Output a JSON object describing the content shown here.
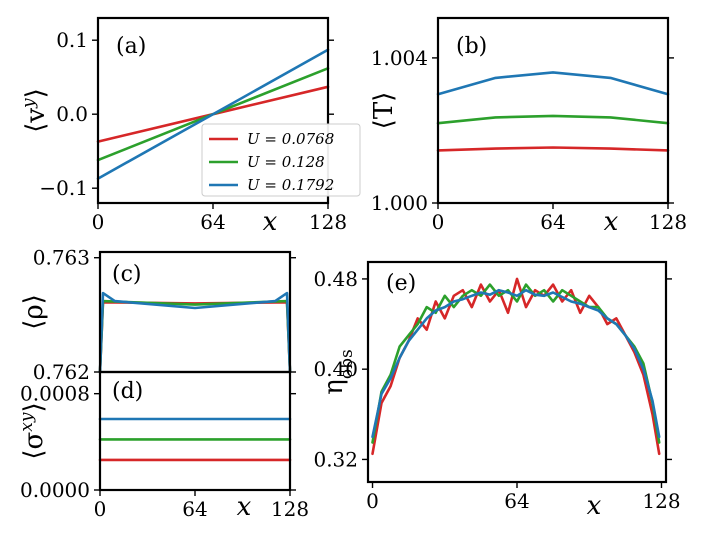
{
  "colors": {
    "red": "#d62728",
    "green": "#2ca02c",
    "blue": "#1f77b4"
  },
  "legend": [
    {
      "label": "U = 0.0768",
      "color": "#d62728"
    },
    {
      "label": "U = 0.128",
      "color": "#2ca02c"
    },
    {
      "label": "U = 0.1792",
      "color": "#1f77b4"
    }
  ],
  "chart_data": [
    {
      "id": "a",
      "panel_label": "(a)",
      "type": "line",
      "xlabel": "x",
      "ylabel": "⟨v^y⟩",
      "xlim": [
        0,
        128
      ],
      "ylim": [
        -0.12,
        0.13
      ],
      "xticks": [
        0,
        64,
        128
      ],
      "xtick_labels": [
        "0",
        "64",
        "128"
      ],
      "yticks": [
        -0.1,
        0.0,
        0.1
      ],
      "ytick_labels": [
        "−0.1",
        "0.0",
        "0.1"
      ],
      "series": [
        {
          "name": "U = 0.0768",
          "color": "#d62728",
          "x": [
            0,
            64,
            128
          ],
          "y": [
            -0.037,
            0.0,
            0.037
          ]
        },
        {
          "name": "U = 0.128",
          "color": "#2ca02c",
          "x": [
            0,
            64,
            128
          ],
          "y": [
            -0.062,
            0.0,
            0.062
          ]
        },
        {
          "name": "U = 0.1792",
          "color": "#1f77b4",
          "x": [
            0,
            64,
            128
          ],
          "y": [
            -0.087,
            0.0,
            0.087
          ]
        }
      ]
    },
    {
      "id": "b",
      "panel_label": "(b)",
      "type": "line",
      "xlabel": "x",
      "ylabel": "⟨T⟩",
      "xlim": [
        0,
        128
      ],
      "ylim": [
        1.0,
        1.0051
      ],
      "xticks": [
        0,
        64,
        128
      ],
      "xtick_labels": [
        "0",
        "64",
        "128"
      ],
      "yticks": [
        1.0,
        1.004
      ],
      "ytick_labels": [
        "1.000",
        "1.004"
      ],
      "series": [
        {
          "name": "U = 0.0768",
          "color": "#d62728",
          "x": [
            0,
            32,
            64,
            96,
            128
          ],
          "y": [
            1.00145,
            1.0015,
            1.00153,
            1.0015,
            1.00145
          ]
        },
        {
          "name": "U = 0.128",
          "color": "#2ca02c",
          "x": [
            0,
            32,
            64,
            96,
            128
          ],
          "y": [
            1.0022,
            1.00236,
            1.0024,
            1.00236,
            1.0022
          ]
        },
        {
          "name": "U = 0.1792",
          "color": "#1f77b4",
          "x": [
            0,
            32,
            64,
            96,
            128
          ],
          "y": [
            1.003,
            1.00345,
            1.0036,
            1.00345,
            1.003
          ]
        }
      ]
    },
    {
      "id": "c",
      "panel_label": "(c)",
      "type": "line",
      "xlabel": "",
      "ylabel": "⟨ρ⟩",
      "xlim": [
        0,
        128
      ],
      "ylim": [
        0.762,
        0.76305
      ],
      "xticks": [],
      "xtick_labels": [],
      "yticks": [
        0.762,
        0.763
      ],
      "ytick_labels": [
        "0.762",
        "0.763"
      ],
      "series": [
        {
          "name": "U = 0.0768",
          "color": "#d62728",
          "x": [
            0,
            2,
            64,
            126,
            128
          ],
          "y": [
            0.762,
            0.76261,
            0.7626,
            0.76261,
            0.762
          ]
        },
        {
          "name": "U = 0.128",
          "color": "#2ca02c",
          "x": [
            0,
            2,
            64,
            126,
            128
          ],
          "y": [
            0.762,
            0.76262,
            0.76259,
            0.76262,
            0.762
          ]
        },
        {
          "name": "U = 0.1792",
          "color": "#1f77b4",
          "x": [
            0,
            2,
            10,
            64,
            118,
            126,
            128
          ],
          "y": [
            0.762,
            0.76269,
            0.76262,
            0.76256,
            0.76262,
            0.76269,
            0.762
          ]
        }
      ]
    },
    {
      "id": "d",
      "panel_label": "(d)",
      "type": "line",
      "xlabel": "x",
      "ylabel": "⟨σ^xy⟩",
      "xlim": [
        0,
        128
      ],
      "ylim": [
        0.0,
        0.00098
      ],
      "xticks": [
        0,
        64,
        128
      ],
      "xtick_labels": [
        "0",
        "64",
        "128"
      ],
      "yticks": [
        0.0,
        0.0008
      ],
      "ytick_labels": [
        "0.0000",
        "0.0008"
      ],
      "series": [
        {
          "name": "U = 0.0768",
          "color": "#d62728",
          "x": [
            0,
            128
          ],
          "y": [
            0.00025,
            0.00025
          ]
        },
        {
          "name": "U = 0.128",
          "color": "#2ca02c",
          "x": [
            0,
            128
          ],
          "y": [
            0.00042,
            0.00042
          ]
        },
        {
          "name": "U = 0.1792",
          "color": "#1f77b4",
          "x": [
            0,
            128
          ],
          "y": [
            0.00059,
            0.00059
          ]
        }
      ]
    },
    {
      "id": "e",
      "panel_label": "(e)",
      "type": "line",
      "xlabel": "x",
      "ylabel": "η_obs",
      "xlim": [
        -2,
        130
      ],
      "ylim": [
        0.3,
        0.495
      ],
      "xticks": [
        0,
        64,
        128
      ],
      "xtick_labels": [
        "0",
        "64",
        "128"
      ],
      "yticks": [
        0.32,
        0.4,
        0.48
      ],
      "ytick_labels": [
        "0.32",
        "0.40",
        "0.48"
      ],
      "series": [
        {
          "name": "U = 0.0768",
          "color": "#d62728",
          "x": [
            0,
            4,
            8,
            12,
            16,
            20,
            24,
            28,
            32,
            36,
            40,
            44,
            48,
            52,
            56,
            60,
            64,
            68,
            72,
            76,
            80,
            84,
            88,
            92,
            96,
            100,
            104,
            108,
            112,
            116,
            120,
            124,
            127
          ],
          "y": [
            0.325,
            0.37,
            0.385,
            0.41,
            0.425,
            0.445,
            0.435,
            0.46,
            0.445,
            0.465,
            0.47,
            0.455,
            0.475,
            0.46,
            0.47,
            0.45,
            0.48,
            0.455,
            0.47,
            0.465,
            0.475,
            0.46,
            0.47,
            0.45,
            0.465,
            0.455,
            0.44,
            0.445,
            0.43,
            0.415,
            0.395,
            0.36,
            0.325
          ]
        },
        {
          "name": "U = 0.128",
          "color": "#2ca02c",
          "x": [
            0,
            4,
            8,
            12,
            16,
            20,
            24,
            28,
            32,
            36,
            40,
            44,
            48,
            52,
            56,
            60,
            64,
            68,
            72,
            76,
            80,
            84,
            88,
            92,
            96,
            100,
            104,
            108,
            112,
            116,
            120,
            124,
            127
          ],
          "y": [
            0.335,
            0.38,
            0.395,
            0.42,
            0.43,
            0.44,
            0.455,
            0.45,
            0.465,
            0.455,
            0.465,
            0.47,
            0.465,
            0.475,
            0.465,
            0.47,
            0.46,
            0.475,
            0.465,
            0.47,
            0.46,
            0.47,
            0.465,
            0.46,
            0.455,
            0.455,
            0.445,
            0.44,
            0.43,
            0.42,
            0.405,
            0.37,
            0.335
          ]
        },
        {
          "name": "U = 0.1792",
          "color": "#1f77b4",
          "x": [
            0,
            4,
            8,
            12,
            16,
            20,
            24,
            28,
            32,
            36,
            40,
            44,
            48,
            52,
            56,
            60,
            64,
            68,
            72,
            76,
            80,
            84,
            88,
            92,
            96,
            100,
            104,
            108,
            112,
            116,
            120,
            124,
            127
          ],
          "y": [
            0.34,
            0.378,
            0.392,
            0.41,
            0.425,
            0.435,
            0.445,
            0.452,
            0.455,
            0.46,
            0.462,
            0.465,
            0.468,
            0.466,
            0.47,
            0.468,
            0.465,
            0.47,
            0.466,
            0.465,
            0.468,
            0.464,
            0.46,
            0.458,
            0.455,
            0.452,
            0.445,
            0.44,
            0.43,
            0.418,
            0.4,
            0.372,
            0.34
          ]
        }
      ]
    }
  ]
}
